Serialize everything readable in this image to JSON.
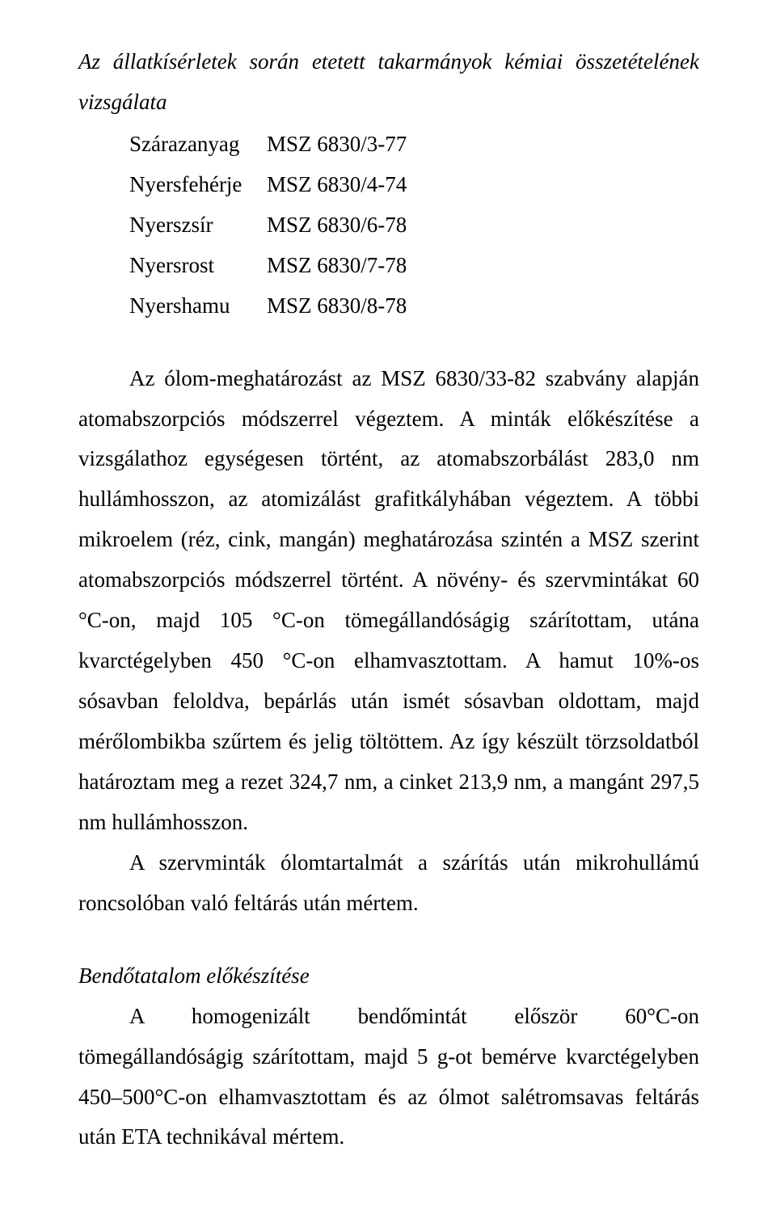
{
  "heading": "Az állatkísérletek során etetett takarmányok kémiai összetételének vizsgálata",
  "methods_table": {
    "rows": [
      {
        "label": "Szárazanyag",
        "value": "MSZ 6830/3-77"
      },
      {
        "label": "Nyersfehérje",
        "value": "MSZ 6830/4-74"
      },
      {
        "label": "Nyerszsír",
        "value": "MSZ 6830/6-78"
      },
      {
        "label": "Nyersrost",
        "value": "MSZ 6830/7-78"
      },
      {
        "label": "Nyershamu",
        "value": "MSZ 6830/8-78"
      }
    ]
  },
  "para1": "Az ólom-meghatározást az MSZ 6830/33-82 szabvány alapján atomabszorpciós módszerrel végeztem. A minták előkészítése a vizsgálathoz egységesen történt, az atomabszorbálást 283,0 nm hullámhosszon, az atomizálást grafitkályhában végeztem. A többi mikroelem (réz, cink, mangán) meghatározása szintén a MSZ szerint atomabszorpciós módszerrel történt. A növény- és szervmintákat 60 °C-on, majd 105 °C-on tömegállandóságig szárítottam, utána kvarctégelyben 450 °C-on elhamvasztottam. A hamut 10%-os sósavban feloldva, bepárlás után ismét sósavban oldottam, majd mérőlombikba szűrtem és jelig töltöttem. Az így készült törzsoldatból határoztam meg a rezet 324,7 nm, a cinket 213,9 nm, a mangánt 297,5 nm hullámhosszon.",
  "para2": "A szervminták ólomtartalmát a szárítás után mikrohullámú roncsolóban való feltárás után mértem.",
  "subheading": "Bendőtatalom előkészítése",
  "para3": "A homogenizált bendőmintát először 60°C-on tömegállandóságig szárítottam, majd 5 g-ot bemérve kvarctégelyben 450–500°C-on elhamvasztottam és az ólmot salétromsavas feltárás után ETA technikával mértem."
}
